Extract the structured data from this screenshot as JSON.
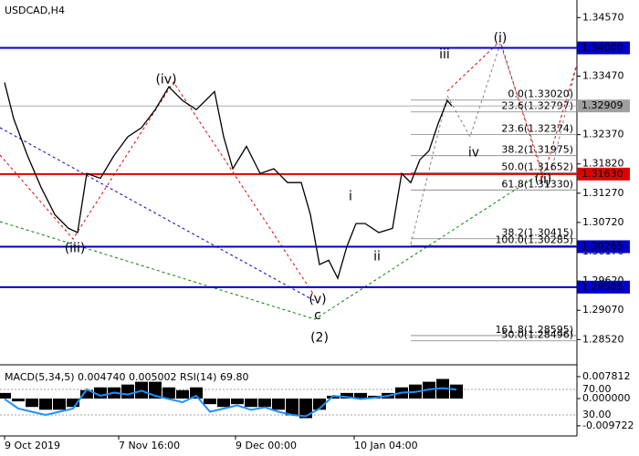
{
  "chart_data": [
    {
      "type": "line",
      "title": "USDCAD,H4",
      "color": "#000000",
      "x": [
        5,
        15,
        30,
        45,
        60,
        75,
        85,
        95,
        110,
        125,
        140,
        155,
        170,
        185,
        200,
        215,
        235,
        245,
        255,
        270,
        285,
        300,
        315,
        330,
        340,
        350,
        360,
        370,
        380,
        390,
        400,
        415,
        430,
        440,
        450,
        460,
        470,
        480,
        490,
        495
      ],
      "values": [
        1.3335,
        1.3267,
        1.3198,
        1.3138,
        1.3087,
        1.3061,
        1.3053,
        1.3164,
        1.3155,
        1.3198,
        1.3233,
        1.325,
        1.3284,
        1.3327,
        1.3301,
        1.3284,
        1.3318,
        1.3233,
        1.3173,
        1.3215,
        1.3164,
        1.3173,
        1.3147,
        1.3147,
        1.3087,
        1.2993,
        1.3001,
        1.2967,
        1.3027,
        1.307,
        1.307,
        1.3053,
        1.3061,
        1.3164,
        1.3147,
        1.319,
        1.3207,
        1.3258,
        1.3301,
        1.3291
      ],
      "xlim": [
        0,
        632
      ],
      "xticks": [
        {
          "value": 5,
          "label": "9 Oct 2019"
        },
        {
          "value": 130,
          "label": "7 Nov 16:00"
        },
        {
          "value": 258,
          "label": "9 Dec 00:00"
        },
        {
          "value": 388,
          "label": "10 Jan 04:00"
        }
      ],
      "ylim": [
        1.2808,
        1.349
      ],
      "yticks": [
        {
          "value": 1.3457,
          "label": "1.34570"
        },
        {
          "value": 1.3347,
          "label": "1.33470"
        },
        {
          "value": 1.3237,
          "label": "1.32370"
        },
        {
          "value": 1.3182,
          "label": "1.31820"
        },
        {
          "value": 1.3127,
          "label": "1.31270"
        },
        {
          "value": 1.3072,
          "label": "1.30720"
        },
        {
          "value": 1.3017,
          "label": "1.30170"
        },
        {
          "value": 1.2962,
          "label": "1.29620"
        },
        {
          "value": 1.2907,
          "label": "1.29070"
        },
        {
          "value": 1.2852,
          "label": "1.28520"
        }
      ],
      "levels": [
        {
          "value": 1.34,
          "label": "1.34000",
          "color": "#0000c8"
        },
        {
          "value": 1.3163,
          "label": "1.31630",
          "color": "#e00000"
        },
        {
          "value": 1.30265,
          "label": "1.30265",
          "color": "#0000c8"
        },
        {
          "value": 1.29505,
          "label": "1.29505",
          "color": "#0000c8"
        }
      ],
      "current_price": {
        "value": 1.32909,
        "label": "1.32909",
        "color": "#a0a0a0"
      },
      "fibonacci": [
        {
          "value": 1.3302,
          "label": "0.0(1.33020)"
        },
        {
          "value": 1.32797,
          "label": "23.6(1.32797)"
        },
        {
          "value": 1.32374,
          "label": "23.6(1.32374)"
        },
        {
          "value": 1.31975,
          "label": "38.2(1.31975)"
        },
        {
          "value": 1.31652,
          "label": "50.0(1.31652)"
        },
        {
          "value": 1.3133,
          "label": "61.8(1.31330)"
        },
        {
          "value": 1.30415,
          "label": "38.2(1.30415)"
        },
        {
          "value": 1.30285,
          "label": "100.0(1.30285)"
        },
        {
          "value": 1.28595,
          "label": "161.8(1.28595)"
        },
        {
          "value": 1.28496,
          "label": "50.0(1.28496)"
        }
      ],
      "annotations": [
        {
          "text": "(iv)",
          "x": 182,
          "y": 1.334,
          "color": "#e00000"
        },
        {
          "text": "(iii)",
          "x": 82,
          "y": 1.3023,
          "color": "#e00000"
        },
        {
          "text": "(v)",
          "x": 348,
          "y": 1.2927,
          "color": "#e00000"
        },
        {
          "text": "c",
          "x": 348,
          "y": 1.2897,
          "color": "#0000c8"
        },
        {
          "text": "(2)",
          "x": 350,
          "y": 1.2855,
          "color": "#008000"
        },
        {
          "text": "i",
          "x": 384,
          "y": 1.3121,
          "color": "#606060"
        },
        {
          "text": "ii",
          "x": 413,
          "y": 1.3008,
          "color": "#606060"
        },
        {
          "text": "iii",
          "x": 487,
          "y": 1.3387,
          "color": "#606060"
        },
        {
          "text": "iv",
          "x": 519,
          "y": 1.3203,
          "color": "#606060"
        },
        {
          "text": "(i)",
          "x": 548,
          "y": 1.3418,
          "color": "#e00000"
        },
        {
          "text": "(ii)",
          "x": 595,
          "y": 1.3152,
          "color": "#e00000"
        }
      ]
    },
    {
      "type": "macd",
      "title": "MACD(5,34,5) 0.004740 0.005002 RSI(14) 69.80",
      "x": [
        5,
        20,
        35,
        50,
        65,
        80,
        95,
        110,
        125,
        140,
        155,
        170,
        185,
        200,
        215,
        230,
        245,
        260,
        275,
        290,
        305,
        320,
        335,
        350,
        365,
        380,
        395,
        410,
        425,
        440,
        455,
        470,
        485,
        500
      ],
      "xlim": [
        0,
        632
      ],
      "series": [
        {
          "name": "MACD",
          "color": "#000000",
          "values": [
            0.002,
            -0.001,
            -0.003,
            -0.004,
            -0.004,
            -0.003,
            0.003,
            0.004,
            0.004,
            0.005,
            0.006,
            0.006,
            0.004,
            0.003,
            0.004,
            -0.002,
            -0.003,
            -0.002,
            -0.003,
            -0.003,
            -0.004,
            -0.006,
            -0.007,
            -0.004,
            0.001,
            0.002,
            0.002,
            0.001,
            0.002,
            0.004,
            0.005,
            0.006,
            0.007,
            0.005
          ]
        },
        {
          "name": "RSI",
          "color": "#1e90ff",
          "axis": "y2",
          "values": [
            55,
            40,
            35,
            30,
            35,
            40,
            70,
            60,
            65,
            62,
            68,
            60,
            55,
            50,
            60,
            35,
            40,
            45,
            38,
            42,
            35,
            30,
            28,
            40,
            60,
            58,
            55,
            57,
            60,
            65,
            66,
            70,
            72,
            69.8
          ]
        }
      ],
      "ylim": [
        -0.0127,
        0.0101
      ],
      "yticks": [
        0.007812,
        {
          "value": 0,
          "label": "0.000000"
        },
        -0.009722
      ],
      "y2lim": [
        0,
        100
      ],
      "y2ticks": [
        {
          "value": 70,
          "label": "70.00"
        },
        {
          "value": 30,
          "label": "30.00"
        }
      ]
    }
  ]
}
